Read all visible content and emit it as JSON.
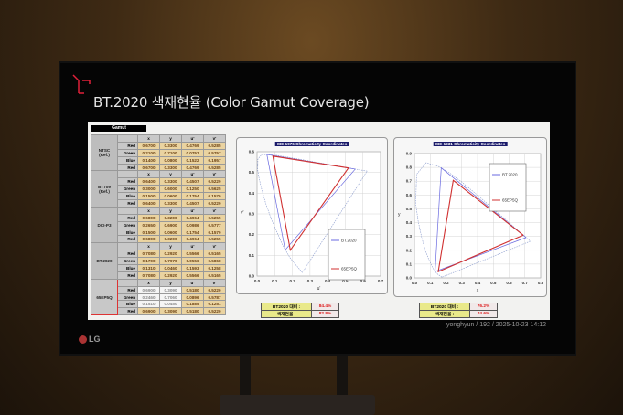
{
  "slide": {
    "title": "BT.2020 색재현율 (Color Gamut Coverage)",
    "brand": "LG",
    "gamut_tab": "Gamut"
  },
  "table": {
    "columns": [
      "x",
      "y",
      "u'",
      "v'"
    ],
    "groups": [
      {
        "name": "NTSC\n(Ref.)",
        "rows": [
          [
            "Red",
            "0.6700",
            "0.3300",
            "0.4769",
            "0.5285"
          ],
          [
            "Green",
            "0.2100",
            "0.7100",
            "0.0757",
            "0.5757"
          ],
          [
            "Blue",
            "0.1400",
            "0.0800",
            "0.1522",
            "0.1957"
          ],
          [
            "Red",
            "0.6700",
            "0.3300",
            "0.4769",
            "0.5285"
          ]
        ]
      },
      {
        "name": "BT709\n(Ref.)",
        "rows": [
          [
            "Red",
            "0.6400",
            "0.3300",
            "0.4507",
            "0.5229"
          ],
          [
            "Green",
            "0.3000",
            "0.6000",
            "0.1250",
            "0.5625"
          ],
          [
            "Blue",
            "0.1500",
            "0.0600",
            "0.1754",
            "0.1579"
          ],
          [
            "Red",
            "0.6400",
            "0.3300",
            "0.4507",
            "0.5229"
          ]
        ]
      },
      {
        "name": "DCI-P3",
        "rows": [
          [
            "Red",
            "0.6800",
            "0.3200",
            "0.4964",
            "0.5255"
          ],
          [
            "Green",
            "0.2650",
            "0.6900",
            "0.0986",
            "0.5777"
          ],
          [
            "Blue",
            "0.1500",
            "0.0600",
            "0.1754",
            "0.1579"
          ],
          [
            "Red",
            "0.6800",
            "0.3200",
            "0.4964",
            "0.5255"
          ]
        ]
      },
      {
        "name": "BT.2020",
        "rows": [
          [
            "Red",
            "0.7080",
            "0.2920",
            "0.5566",
            "0.5165"
          ],
          [
            "Green",
            "0.1700",
            "0.7970",
            "0.0556",
            "0.5868"
          ],
          [
            "Blue",
            "0.1310",
            "0.0460",
            "0.1593",
            "0.1258"
          ],
          [
            "Red",
            "0.7080",
            "0.2920",
            "0.5566",
            "0.5165"
          ]
        ]
      },
      {
        "name": "65EP5Q",
        "highlight": true,
        "rows": [
          [
            "Red",
            "0.6900",
            "0.3090",
            "0.5180",
            "0.5220"
          ],
          [
            "Green",
            "0.2460",
            "0.7060",
            "0.0896",
            "0.5787"
          ],
          [
            "Blue",
            "0.1510",
            "0.0450",
            "0.1885",
            "0.1251"
          ],
          [
            "Red",
            "0.6900",
            "0.3090",
            "0.5180",
            "0.5220"
          ]
        ]
      }
    ]
  },
  "chart_data": [
    {
      "type": "line",
      "title": "CIE 1976 Chromaticity Coordinates",
      "xlabel": "u'",
      "ylabel": "v'",
      "xlim": [
        0,
        0.7
      ],
      "ylim": [
        0,
        0.6
      ],
      "xticks": [
        "0.0",
        "0.1",
        "0.2",
        "0.3",
        "0.4",
        "0.5",
        "0.6",
        "0.7"
      ],
      "yticks": [
        "0.0",
        "0.1",
        "0.2",
        "0.3",
        "0.4",
        "0.5",
        "0.6"
      ],
      "grid": true,
      "legend": "right",
      "series": [
        {
          "name": "BT.2020",
          "color": "#6a6ae0",
          "points": [
            [
              0.5566,
              0.5165
            ],
            [
              0.0556,
              0.5868
            ],
            [
              0.1593,
              0.1258
            ],
            [
              0.5566,
              0.5165
            ]
          ]
        },
        {
          "name": "65EP5Q",
          "color": "#d03030",
          "points": [
            [
              0.518,
              0.522
            ],
            [
              0.0896,
              0.5787
            ],
            [
              0.1885,
              0.1251
            ],
            [
              0.518,
              0.522
            ]
          ]
        }
      ]
    },
    {
      "type": "line",
      "title": "CIE 1931 Chromaticity Coordinates",
      "xlabel": "x",
      "ylabel": "y",
      "xlim": [
        0,
        0.8
      ],
      "ylim": [
        0,
        0.9
      ],
      "xticks": [
        "0.0",
        "0.1",
        "0.2",
        "0.3",
        "0.4",
        "0.5",
        "0.6",
        "0.7",
        "0.8"
      ],
      "yticks": [
        "0.0",
        "0.1",
        "0.2",
        "0.3",
        "0.4",
        "0.5",
        "0.6",
        "0.7",
        "0.8",
        "0.9"
      ],
      "grid": true,
      "legend": "top-right",
      "series": [
        {
          "name": "BT.2020",
          "color": "#6a6ae0",
          "points": [
            [
              0.708,
              0.292
            ],
            [
              0.17,
              0.797
            ],
            [
              0.131,
              0.046
            ],
            [
              0.708,
              0.292
            ]
          ]
        },
        {
          "name": "65EP5Q",
          "color": "#d03030",
          "points": [
            [
              0.69,
              0.309
            ],
            [
              0.246,
              0.706
            ],
            [
              0.151,
              0.045
            ],
            [
              0.69,
              0.309
            ]
          ]
        }
      ]
    }
  ],
  "summary": [
    {
      "label1": "BT2020 대비 :",
      "value1": "84.4%",
      "label2": "색재현율 :",
      "value2": "82.8%"
    },
    {
      "label1": "BT2020 대비 :",
      "value1": "76.2%",
      "label2": "색재현율 :",
      "value2": "74.6%"
    }
  ],
  "watermark": "yonghyun / 192 / 2025-10-23 14:12",
  "colors": {
    "bt2020": "#6a6ae0",
    "model": "#d03030",
    "accent": "#e0203a"
  }
}
